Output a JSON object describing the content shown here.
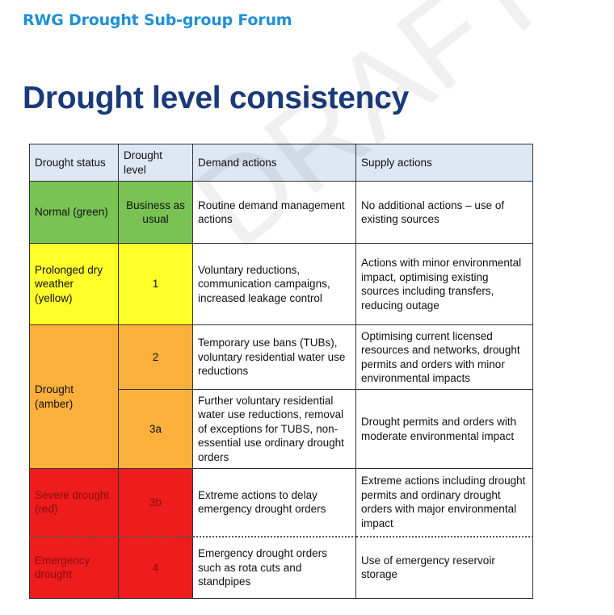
{
  "header": {
    "forum_title": "RWG Drought Sub-group Forum",
    "slide_title": "Drought level consistency"
  },
  "watermark": "DRAFT",
  "table": {
    "columns": [
      "Drought status",
      "Drought level",
      "Demand actions",
      "Supply actions"
    ],
    "rows": [
      {
        "status": "Normal (green)",
        "level": "Business as usual",
        "demand": "Routine demand management actions",
        "supply": "No additional actions – use of existing sources",
        "color": "#79c354"
      },
      {
        "status": "Prolonged dry weather (yellow)",
        "level": "1",
        "demand": "Voluntary reductions, communication campaigns, increased leakage control",
        "supply": "Actions with minor environmental impact, optimising existing sources including transfers, reducing outage",
        "color": "#ffff2a"
      },
      {
        "status": "Drought (amber)",
        "level": "2",
        "demand": "Temporary use bans (TUBs), voluntary residential water use reductions",
        "supply": "Optimising current licensed resources and networks, drought permits and orders with minor environmental impacts",
        "color": "#fbb03b"
      },
      {
        "level": "3a",
        "demand": "Further voluntary residential water use reductions, removal of exceptions for TUBS, non-essential use ordinary drought orders",
        "supply": "Drought permits and orders with moderate environmental impact",
        "color": "#fbb03b"
      },
      {
        "status": "Severe drought (red)",
        "level": "3b",
        "demand": "Extreme actions to delay emergency drought orders",
        "supply": "Extreme actions including drought permits and ordinary drought orders with major environmental impact",
        "color": "#ee1c1c"
      },
      {
        "status": "Emergency drought",
        "level": "4",
        "demand": "Emergency drought orders such as rota cuts and standpipes",
        "supply": "Use of emergency reservoir storage",
        "color": "#ee1c1c"
      }
    ]
  }
}
